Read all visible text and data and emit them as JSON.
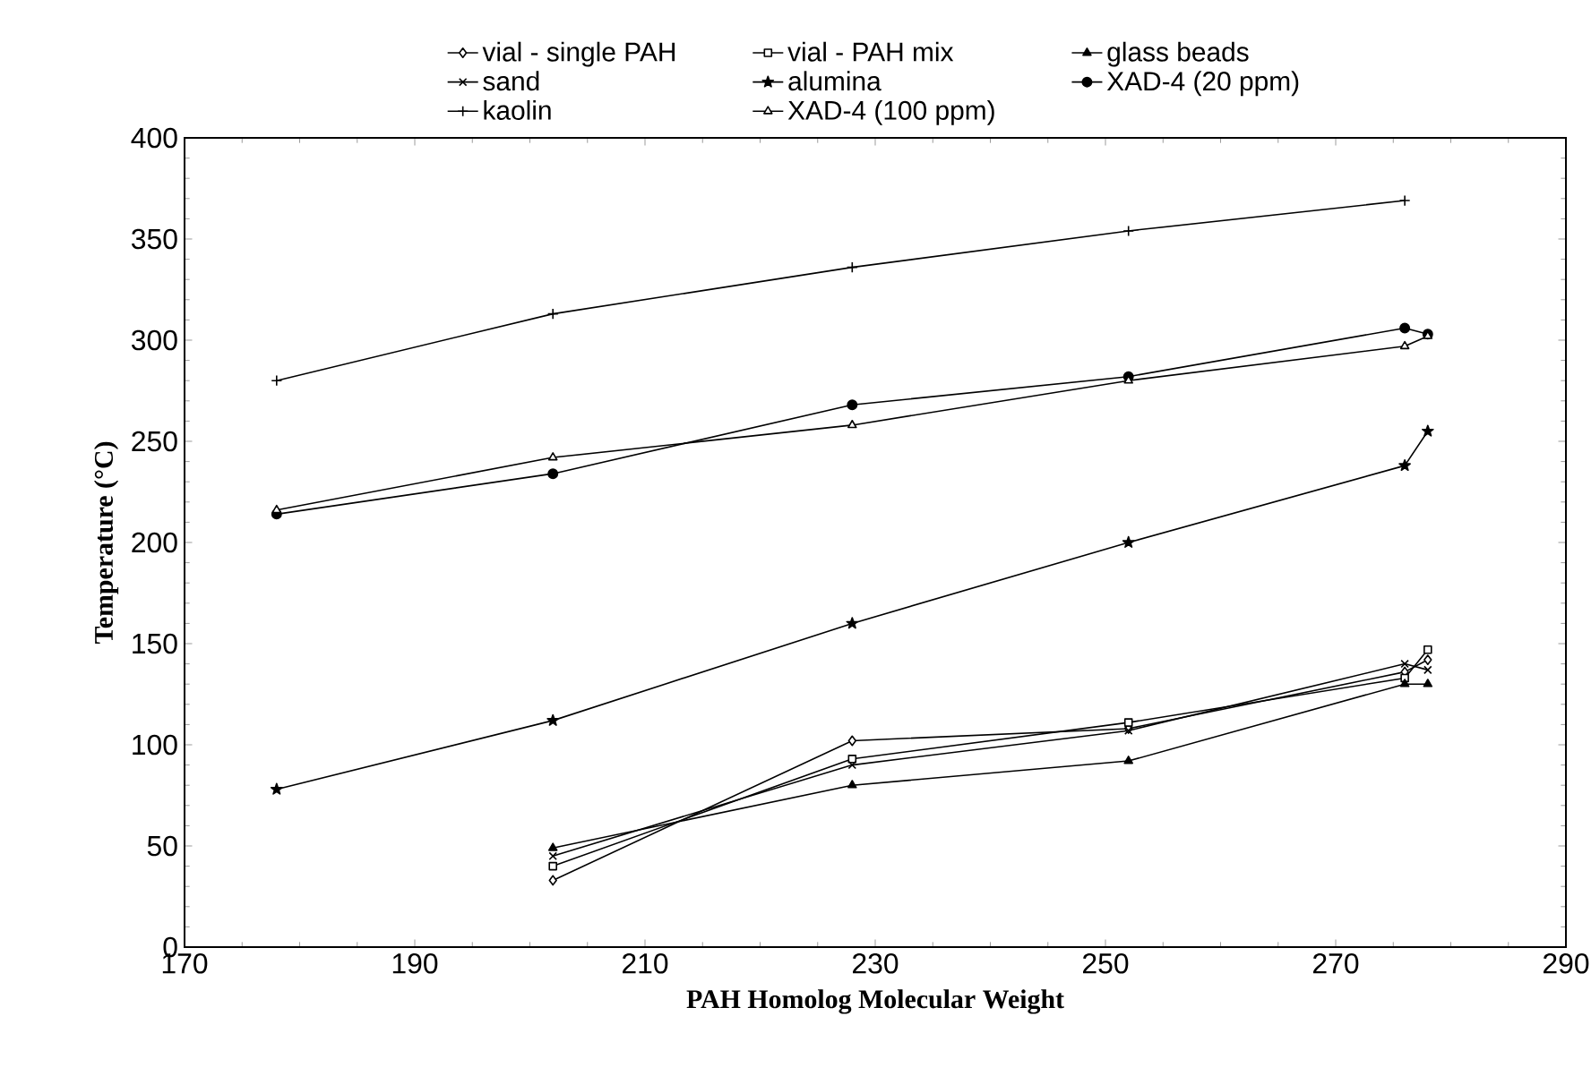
{
  "chart_data": {
    "type": "line",
    "xlabel": "PAH Homolog Molecular Weight",
    "ylabel": "Temperature (°C)",
    "xlim": [
      170,
      290
    ],
    "xticks": [
      170,
      190,
      210,
      230,
      250,
      270,
      290
    ],
    "ylim": [
      0,
      400
    ],
    "yticks": [
      0,
      50,
      100,
      150,
      200,
      250,
      300,
      350,
      400
    ],
    "grid": false,
    "legend": "top",
    "line_style": "solid",
    "series": [
      {
        "name": "vial - single PAH",
        "color": "#000000",
        "marker": "diamond",
        "x": [
          202,
          228,
          252,
          276,
          278
        ],
        "values": [
          33,
          102,
          108,
          136,
          142
        ]
      },
      {
        "name": "vial - PAH mix",
        "color": "#000000",
        "marker": "square",
        "x": [
          202,
          228,
          252,
          276,
          278
        ],
        "values": [
          40,
          93,
          111,
          133,
          147
        ]
      },
      {
        "name": "glass beads",
        "color": "#000000",
        "marker": "triangle",
        "x": [
          202,
          228,
          252,
          276,
          278
        ],
        "values": [
          49,
          80,
          92,
          130,
          130
        ]
      },
      {
        "name": "sand",
        "color": "#000000",
        "marker": "cross",
        "x": [
          202,
          228,
          252,
          276,
          278
        ],
        "values": [
          45,
          90,
          107,
          140,
          137
        ]
      },
      {
        "name": "alumina",
        "color": "#000000",
        "marker": "star",
        "x": [
          178,
          202,
          228,
          252,
          276,
          278
        ],
        "values": [
          78,
          112,
          160,
          200,
          238,
          255
        ]
      },
      {
        "name": "XAD-4 (20 ppm)",
        "color": "#000000",
        "marker": "circle",
        "x": [
          178,
          202,
          228,
          252,
          276,
          278
        ],
        "values": [
          214,
          234,
          268,
          282,
          306,
          303
        ]
      },
      {
        "name": "kaolin",
        "color": "#000000",
        "marker": "plus",
        "x": [
          178,
          202,
          228,
          252,
          276
        ],
        "values": [
          280,
          313,
          336,
          354,
          369
        ]
      },
      {
        "name": "XAD-4 (100 ppm)",
        "color": "#000000",
        "marker": "triangle-open",
        "x": [
          178,
          202,
          228,
          252,
          276,
          278
        ],
        "values": [
          216,
          242,
          258,
          280,
          297,
          302
        ]
      }
    ]
  }
}
